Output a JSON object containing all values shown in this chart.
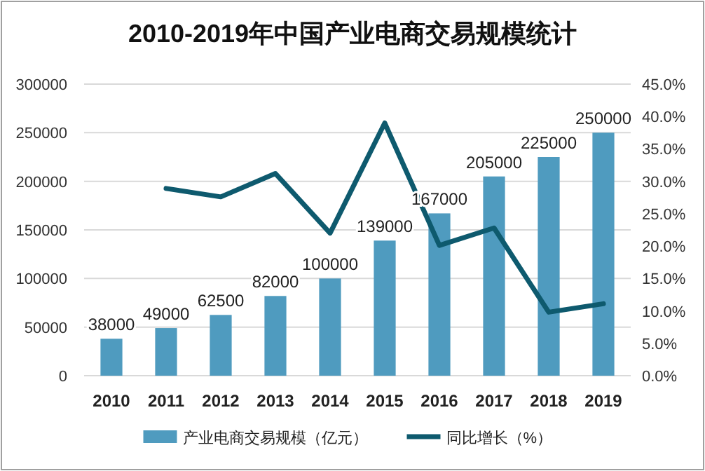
{
  "chart_data": {
    "type": "bar",
    "title": "2010-2019年中国产业电商交易规模统计",
    "categories": [
      "2010",
      "2011",
      "2012",
      "2013",
      "2014",
      "2015",
      "2016",
      "2017",
      "2018",
      "2019"
    ],
    "series": [
      {
        "name": "产业电商交易规模（亿元）",
        "color": "#4f9bbf",
        "values": [
          38000,
          49000,
          62500,
          82000,
          100000,
          139000,
          167000,
          205000,
          225000,
          250000
        ],
        "data_labels": true
      },
      {
        "name": "同比增长（%）",
        "type": "line",
        "axis": "y2",
        "color": "#0e5a6e",
        "values": [
          null,
          28.9,
          27.6,
          31.2,
          22.0,
          39.0,
          20.1,
          22.8,
          9.8,
          11.1
        ]
      }
    ],
    "ylim": [
      0,
      300000
    ],
    "yticks": [
      0,
      50000,
      100000,
      150000,
      200000,
      250000,
      300000
    ],
    "y2lim": [
      0,
      45
    ],
    "y2ticks": [
      {
        "value": 0,
        "label": "0.0%"
      },
      {
        "value": 5,
        "label": "5.0%"
      },
      {
        "value": 10,
        "label": "10.0%"
      },
      {
        "value": 15,
        "label": "15.0%"
      },
      {
        "value": 20,
        "label": "20.0%"
      },
      {
        "value": 25,
        "label": "25.0%"
      },
      {
        "value": 30,
        "label": "30.0%"
      },
      {
        "value": 35,
        "label": "35.0%"
      },
      {
        "value": 40,
        "label": "40.0%"
      },
      {
        "value": 45,
        "label": "45.0%"
      }
    ],
    "grid": "y",
    "legend": "bottom",
    "marker": "none"
  }
}
